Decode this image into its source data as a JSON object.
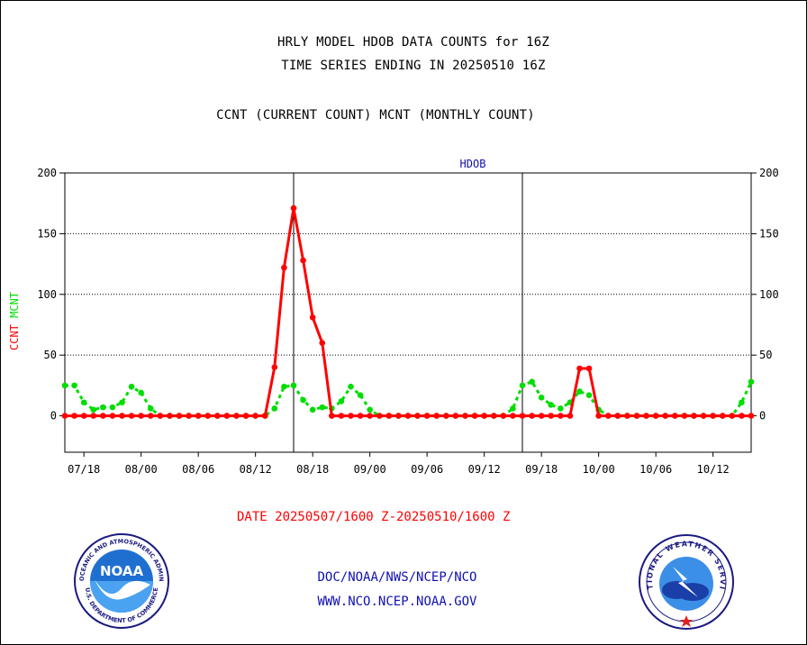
{
  "header": {
    "title_line1": "HRLY MODEL HDOB DATA COUNTS for 16Z",
    "title_line2": "TIME SERIES ENDING IN 20250510 16Z",
    "title_line3": "CCNT (CURRENT COUNT) MCNT (MONTHLY COUNT)"
  },
  "footer": {
    "date_range": "DATE 20250507/1600 Z-20250510/1600 Z",
    "org_path": "DOC/NOAA/NWS/NCEP/NCO",
    "website": "WWW.NCO.NCEP.NOAA.GOV"
  },
  "logos": {
    "noaa_text": "NOAA",
    "noaa_ring_text": "NATIONAL OCEANIC AND ATMOSPHERIC ADMINISTRATION",
    "noaa_bottom_text": "U.S. DEPARTMENT OF COMMERCE",
    "nws_ring_text": "NATIONAL WEATHER SERVICE"
  },
  "colors": {
    "ccnt": "#ff0000",
    "mcnt": "#00dd00",
    "panel_title": "#1010b0",
    "axis": "#000000"
  },
  "chart_data": {
    "type": "line",
    "panel_title": "HDOB",
    "ylabel_left_ccnt": "CCNT",
    "ylabel_left_mcnt": "MCNT",
    "ylim": [
      -30,
      200
    ],
    "y_ticks": [
      0,
      50,
      100,
      150,
      200
    ],
    "grid": "horizontal dotted at 50, 100, 150; vertical solid lines at day boundaries",
    "x_tick_labels": [
      "07/18",
      "08/00",
      "08/06",
      "08/12",
      "08/18",
      "09/00",
      "09/06",
      "09/12",
      "09/18",
      "10/00",
      "10/06",
      "10/12"
    ],
    "x_tick_hours": [
      -46,
      -40,
      -34,
      -28,
      -22,
      -16,
      -10,
      -4,
      2,
      8,
      14,
      20
    ],
    "day_boundaries_hours": [
      -24,
      0,
      24
    ],
    "xlim_hours": [
      -48,
      24
    ],
    "x_units": "hours relative to 20250509 00Z",
    "series": [
      {
        "name": "CCNT",
        "color": "#ff0000",
        "x": [
          -48,
          -47,
          -46,
          -45,
          -44,
          -43,
          -42,
          -41,
          -40,
          -39,
          -38,
          -37,
          -36,
          -35,
          -34,
          -33,
          -32,
          -31,
          -30,
          -29,
          -28,
          -27,
          -26,
          -25,
          -24,
          -23,
          -22,
          -21,
          -20,
          -19,
          -18,
          -17,
          -16,
          -15,
          -14,
          -13,
          -12,
          -11,
          -10,
          -9,
          -8,
          -7,
          -6,
          -5,
          -4,
          -3,
          -2,
          -1,
          0,
          1,
          2,
          3,
          4,
          5,
          6,
          7,
          8,
          9,
          10,
          11,
          12,
          13,
          14,
          15,
          16,
          17,
          18,
          19,
          20,
          21,
          22,
          23,
          24
        ],
        "values": [
          0,
          0,
          0,
          0,
          0,
          0,
          0,
          0,
          0,
          0,
          0,
          0,
          0,
          0,
          0,
          0,
          0,
          0,
          0,
          0,
          0,
          0,
          40,
          122,
          171,
          128,
          81,
          60,
          0,
          0,
          0,
          0,
          0,
          0,
          0,
          0,
          0,
          0,
          0,
          0,
          0,
          0,
          0,
          0,
          0,
          0,
          0,
          0,
          0,
          0,
          0,
          0,
          0,
          0,
          39,
          39,
          0,
          0,
          0,
          0,
          0,
          0,
          0,
          0,
          0,
          0,
          0,
          0,
          0,
          0,
          0,
          0,
          0
        ]
      },
      {
        "name": "MCNT",
        "color": "#00dd00",
        "x": [
          -48,
          -47,
          -46,
          -45,
          -44,
          -43,
          -42,
          -41,
          -40,
          -39,
          -38,
          -37,
          -36,
          -35,
          -34,
          -33,
          -32,
          -31,
          -30,
          -29,
          -28,
          -27,
          -26,
          -25,
          -24,
          -23,
          -22,
          -21,
          -20,
          -19,
          -18,
          -17,
          -16,
          -15,
          -14,
          -13,
          -12,
          -11,
          -10,
          -9,
          -8,
          -7,
          -6,
          -5,
          -4,
          -3,
          -2,
          -1,
          0,
          1,
          2,
          3,
          4,
          5,
          6,
          7,
          8,
          9,
          10,
          11,
          12,
          13,
          14,
          15,
          16,
          17,
          18,
          19,
          20,
          21,
          22,
          23,
          24
        ],
        "values": [
          25,
          25,
          11,
          5,
          7,
          7,
          11,
          24,
          19,
          6,
          0,
          0,
          0,
          0,
          0,
          0,
          0,
          0,
          0,
          0,
          0,
          0,
          6,
          24,
          25,
          13,
          5,
          7,
          6,
          12,
          24,
          17,
          5,
          0,
          0,
          0,
          0,
          0,
          0,
          0,
          0,
          0,
          0,
          0,
          0,
          0,
          0,
          6,
          25,
          28,
          15,
          9,
          6,
          11,
          20,
          17,
          5,
          0,
          0,
          0,
          0,
          0,
          0,
          0,
          0,
          0,
          0,
          0,
          0,
          0,
          0,
          11,
          28
        ]
      }
    ]
  }
}
